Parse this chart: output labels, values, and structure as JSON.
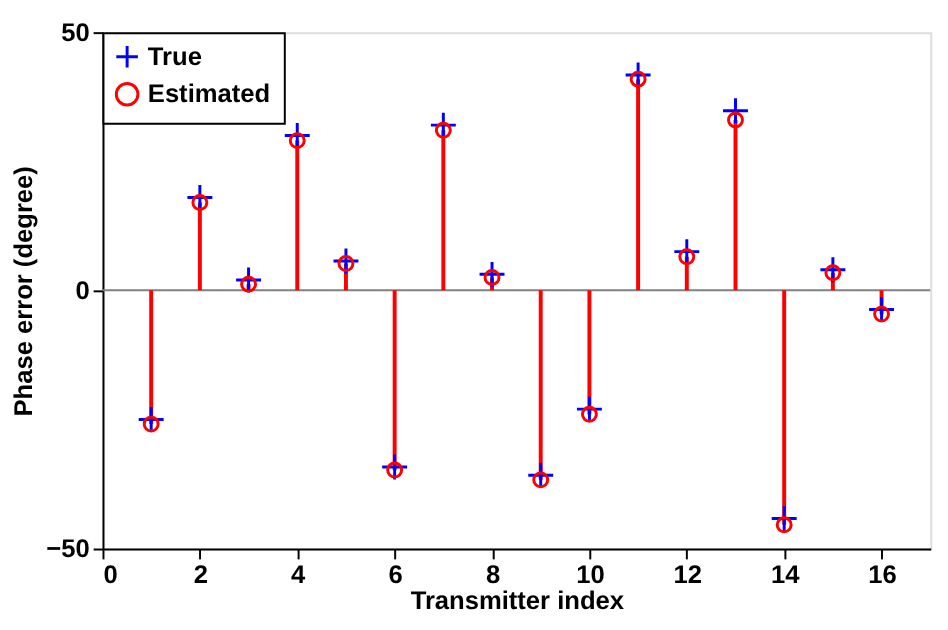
{
  "chart_data": {
    "type": "lollipop",
    "xlabel": "Transmitter index",
    "ylabel": "Phase error (degree)",
    "x": [
      1,
      2,
      3,
      4,
      5,
      6,
      7,
      8,
      9,
      10,
      11,
      12,
      13,
      14,
      15,
      16
    ],
    "series": [
      {
        "name": "True",
        "type": "scatter",
        "marker": "cross",
        "color": "#0000ff",
        "values": [
          -25,
          18,
          2,
          30,
          5.7,
          -34.2,
          32,
          3.1,
          -35.8,
          -23,
          41.7,
          7.5,
          34.8,
          -44.2,
          4,
          -3.7
        ]
      },
      {
        "name": "Estimated",
        "marker": "circle",
        "color": "#ff0000",
        "values": [
          -25.9,
          17,
          1.2,
          29,
          5.2,
          -34.8,
          31,
          2.5,
          -36.7,
          -24,
          40.9,
          6.5,
          33,
          -45.4,
          3.4,
          -4.6
        ]
      }
    ],
    "xlim": [
      0,
      17
    ],
    "xticks": [
      0,
      2,
      4,
      6,
      8,
      10,
      12,
      14,
      16
    ],
    "ylim": [
      -50,
      50
    ],
    "yticks": [
      -50,
      0,
      50
    ],
    "ref_lines": [
      {
        "axis": "y",
        "value": 0,
        "color": "#808080"
      }
    ],
    "grid": false,
    "legend": "top left"
  }
}
